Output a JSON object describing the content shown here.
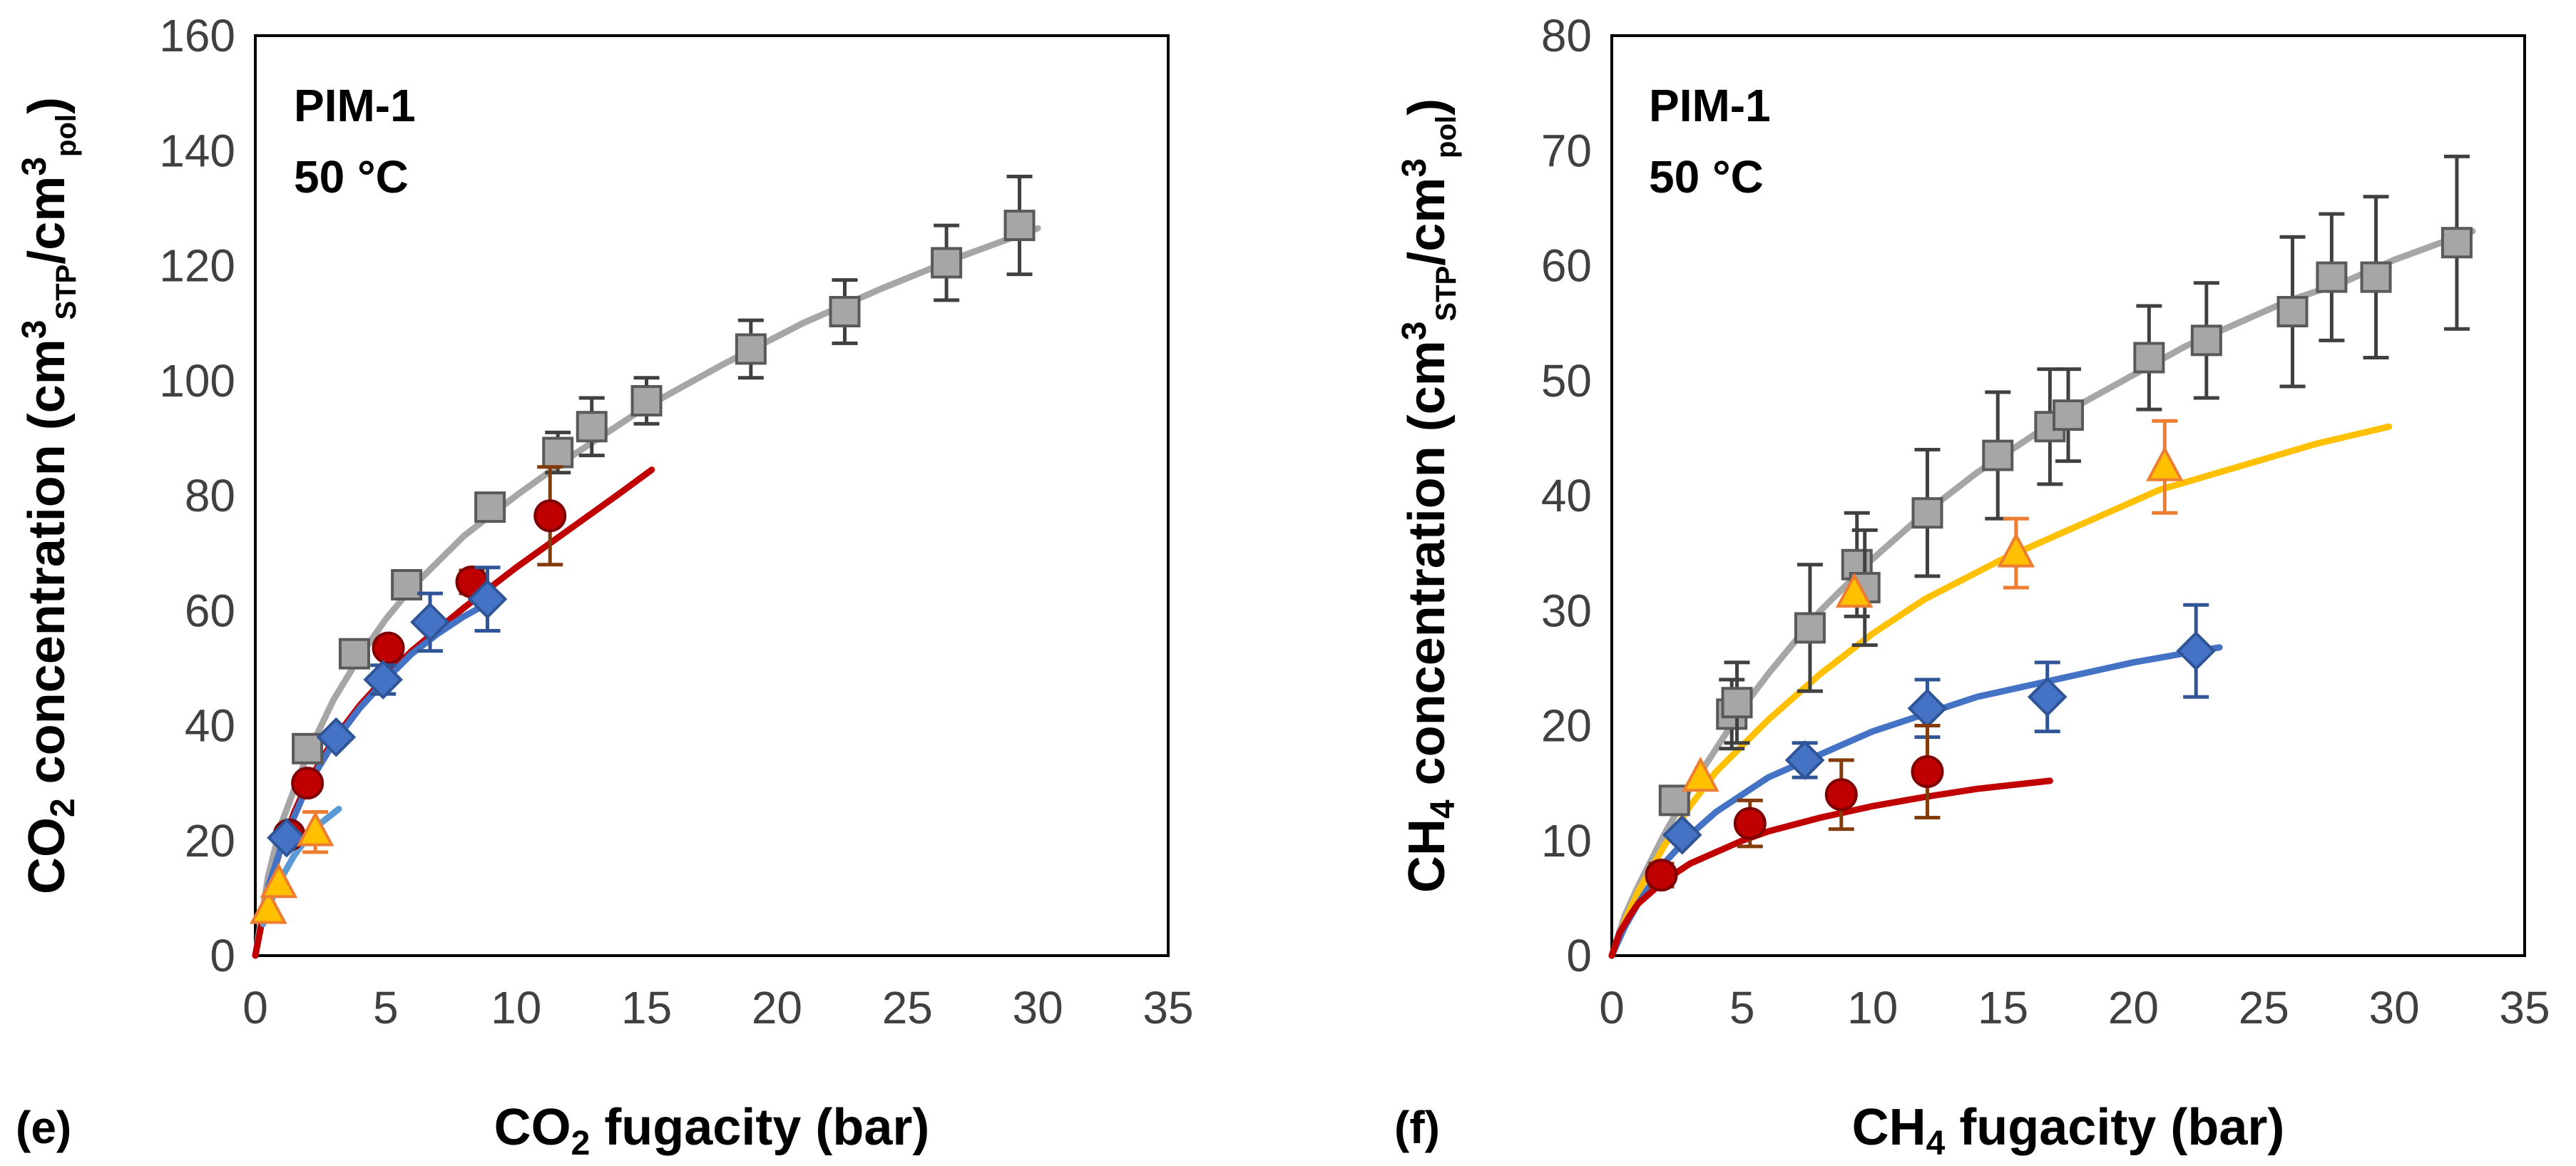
{
  "chart_data": [
    {
      "type": "scatter",
      "panel_label": "(e)",
      "annotation_lines": [
        "PIM-1",
        "50 °C"
      ],
      "xlabel": {
        "pre": "CO",
        "sub": "2",
        "post": " fugacity (bar)"
      },
      "ylabel": {
        "pre": "CO",
        "sub1": "2",
        "mid": " concentration (cm",
        "sup1": "3",
        "sub2": "STP",
        "mid2": "/cm",
        "sup2": "3",
        "sub3": "pol",
        "post": ")"
      },
      "xlim": [
        0,
        35
      ],
      "ylim": [
        0,
        160
      ],
      "xticks": [
        "0",
        "5",
        "10",
        "15",
        "20",
        "25",
        "30",
        "35"
      ],
      "yticks": [
        "0",
        "20",
        "40",
        "60",
        "80",
        "100",
        "120",
        "140",
        "160"
      ],
      "series": [
        {
          "name": "gray squares",
          "marker": "square",
          "color": "#a6a6a6",
          "edge": "#595959",
          "errcolor": "#404040",
          "points": [
            [
              2.0,
              36,
              0
            ],
            [
              3.8,
              52.5,
              0
            ],
            [
              5.8,
              64.5,
              2
            ],
            [
              9.0,
              78,
              2
            ],
            [
              11.6,
              87.5,
              3.5
            ],
            [
              12.9,
              92,
              5
            ],
            [
              15.0,
              96.5,
              4
            ],
            [
              19.0,
              105.5,
              5
            ],
            [
              22.6,
              112,
              5.5
            ],
            [
              26.5,
              120.5,
              6.5
            ],
            [
              29.3,
              127,
              8.5
            ]
          ],
          "fit": [
            [
              0,
              0
            ],
            [
              0.5,
              14
            ],
            [
              1,
              23
            ],
            [
              2,
              35
            ],
            [
              3,
              44.5
            ],
            [
              4,
              52
            ],
            [
              5,
              58.5
            ],
            [
              6,
              64
            ],
            [
              8,
              73
            ],
            [
              10,
              80
            ],
            [
              12,
              86.5
            ],
            [
              15,
              95.5
            ],
            [
              18,
              103
            ],
            [
              21,
              110
            ],
            [
              24,
              116
            ],
            [
              27,
              121.5
            ],
            [
              30,
              126.5
            ]
          ],
          "fitcolor": "#a6a6a6"
        },
        {
          "name": "red circles",
          "marker": "circle",
          "color": "#c00000",
          "edge": "#7f0000",
          "errcolor": "#843c0c",
          "points": [
            [
              1.3,
              21,
              0
            ],
            [
              2.0,
              30,
              0
            ],
            [
              5.1,
              53.5,
              1.5
            ],
            [
              8.3,
              65,
              2
            ],
            [
              11.3,
              76.5,
              8.5
            ]
          ],
          "fit": [
            [
              0,
              0
            ],
            [
              0.3,
              7
            ],
            [
              0.6,
              13
            ],
            [
              1,
              19
            ],
            [
              1.5,
              25
            ],
            [
              2,
              30
            ],
            [
              3,
              37.5
            ],
            [
              4,
              43.5
            ],
            [
              5,
              48.5
            ],
            [
              6,
              53
            ],
            [
              8,
              60.5
            ],
            [
              10,
              67.5
            ],
            [
              12,
              74
            ],
            [
              14,
              80.5
            ],
            [
              15.2,
              84.5
            ]
          ],
          "fitcolor": "#c00000"
        },
        {
          "name": "blue diamonds",
          "marker": "diamond",
          "color": "#4472c4",
          "edge": "#2f5597",
          "errcolor": "#2f5597",
          "points": [
            [
              1.2,
              20.5,
              0
            ],
            [
              3.1,
              38,
              0
            ],
            [
              4.9,
              48,
              2.5
            ],
            [
              6.7,
              58,
              5
            ],
            [
              8.9,
              62,
              5.5
            ]
          ],
          "fit": [
            [
              0.5,
              12
            ],
            [
              1,
              19
            ],
            [
              2,
              29.5
            ],
            [
              3,
              37
            ],
            [
              4,
              43
            ],
            [
              5,
              48
            ],
            [
              6,
              52.5
            ],
            [
              7,
              56
            ],
            [
              8,
              59
            ],
            [
              9,
              61.5
            ]
          ],
          "fitcolor": "#4472c4"
        },
        {
          "name": "orange triangles",
          "marker": "triangle",
          "color": "#ffc000",
          "edge": "#ed7d31",
          "errcolor": "#ed7d31",
          "points": [
            [
              0.5,
              8,
              0
            ],
            [
              0.9,
              12.5,
              0
            ],
            [
              2.3,
              21.5,
              3.5
            ]
          ],
          "fit": [
            [
              0.3,
              5.5
            ],
            [
              0.6,
              9.5
            ],
            [
              1,
              13.5
            ],
            [
              1.5,
              17.5
            ],
            [
              2,
              20.5
            ],
            [
              2.5,
              23
            ],
            [
              3.2,
              25.5
            ]
          ],
          "fitcolor": "#5b9bd5"
        }
      ]
    },
    {
      "type": "scatter",
      "panel_label": "(f)",
      "annotation_lines": [
        "PIM-1",
        "50 °C"
      ],
      "xlabel": {
        "pre": "CH",
        "sub": "4",
        "post": " fugacity (bar)"
      },
      "ylabel": {
        "pre": "CH",
        "sub1": "4",
        "mid": " concentration (cm",
        "sup1": "3",
        "sub2": "STP",
        "mid2": "/cm",
        "sup2": "3",
        "sub3": "pol",
        "post": ")"
      },
      "xlim": [
        0,
        35
      ],
      "ylim": [
        0,
        80
      ],
      "xticks": [
        "0",
        "5",
        "10",
        "15",
        "20",
        "25",
        "30",
        "35"
      ],
      "yticks": [
        "0",
        "10",
        "20",
        "30",
        "40",
        "50",
        "60",
        "70",
        "80"
      ],
      "series": [
        {
          "name": "gray squares",
          "marker": "square",
          "color": "#a6a6a6",
          "edge": "#595959",
          "errcolor": "#404040",
          "points": [
            [
              2.4,
              13.5,
              0
            ],
            [
              4.6,
              21,
              3
            ],
            [
              4.8,
              22,
              3.5
            ],
            [
              7.6,
              28.5,
              5.5
            ],
            [
              9.4,
              34,
              4.5
            ],
            [
              9.7,
              32,
              5
            ],
            [
              12.1,
              38.5,
              5.5
            ],
            [
              14.8,
              43.5,
              5.5
            ],
            [
              16.8,
              46,
              5
            ],
            [
              17.5,
              47,
              4
            ],
            [
              20.6,
              52,
              4.5
            ],
            [
              22.8,
              53.5,
              5
            ],
            [
              26.1,
              56,
              6.5
            ],
            [
              27.6,
              59,
              5.5
            ],
            [
              29.3,
              59,
              7
            ],
            [
              32.4,
              62,
              7.5
            ]
          ],
          "fit": [
            [
              0,
              0
            ],
            [
              0.5,
              3.5
            ],
            [
              1,
              6
            ],
            [
              2,
              10.5
            ],
            [
              3,
              14.5
            ],
            [
              4,
              18
            ],
            [
              5,
              21.5
            ],
            [
              6,
              24.5
            ],
            [
              8,
              30
            ],
            [
              10,
              34.5
            ],
            [
              12,
              38.5
            ],
            [
              14,
              42
            ],
            [
              16,
              45
            ],
            [
              18,
              48
            ],
            [
              20,
              50.5
            ],
            [
              22,
              53
            ],
            [
              24,
              55
            ],
            [
              26,
              57
            ],
            [
              28,
              58.5
            ],
            [
              30,
              60.5
            ],
            [
              33,
              63
            ]
          ],
          "fitcolor": "#a6a6a6"
        },
        {
          "name": "orange triangles",
          "marker": "triangle",
          "color": "#ffc000",
          "edge": "#ed7d31",
          "errcolor": "#ed7d31",
          "points": [
            [
              3.4,
              15.5,
              0
            ],
            [
              9.3,
              31.5,
              0
            ],
            [
              15.5,
              35,
              3
            ],
            [
              21.2,
              42.5,
              4
            ]
          ],
          "fit": [
            [
              0,
              0
            ],
            [
              0.5,
              3
            ],
            [
              1,
              5.5
            ],
            [
              2,
              9.5
            ],
            [
              3,
              13
            ],
            [
              4,
              16
            ],
            [
              6,
              20.5
            ],
            [
              8,
              24.5
            ],
            [
              10,
              28
            ],
            [
              12,
              31
            ],
            [
              15,
              34.5
            ],
            [
              18,
              37.5
            ],
            [
              21,
              40.5
            ],
            [
              24,
              42.5
            ],
            [
              27,
              44.5
            ],
            [
              29.8,
              46
            ]
          ],
          "fitcolor": "#ffc000"
        },
        {
          "name": "blue diamonds",
          "marker": "diamond",
          "color": "#4472c4",
          "edge": "#2f5597",
          "errcolor": "#2f5597",
          "points": [
            [
              2.7,
              10.5,
              0
            ],
            [
              7.4,
              17,
              1.5
            ],
            [
              12.1,
              21.5,
              2.5
            ],
            [
              16.7,
              22.5,
              3
            ],
            [
              22.4,
              26.5,
              4
            ]
          ],
          "fit": [
            [
              0,
              0
            ],
            [
              0.5,
              2.5
            ],
            [
              1,
              4.5
            ],
            [
              2,
              8
            ],
            [
              3,
              10.5
            ],
            [
              4,
              12.5
            ],
            [
              5,
              14
            ],
            [
              6,
              15.5
            ],
            [
              8,
              17.5
            ],
            [
              10,
              19.5
            ],
            [
              12,
              21
            ],
            [
              14,
              22.5
            ],
            [
              16,
              23.5
            ],
            [
              18,
              24.5
            ],
            [
              20,
              25.5
            ],
            [
              22,
              26.3
            ],
            [
              23.3,
              26.8
            ]
          ],
          "fitcolor": "#4472c4"
        },
        {
          "name": "red circles",
          "marker": "circle",
          "color": "#c00000",
          "edge": "#7f0000",
          "errcolor": "#843c0c",
          "points": [
            [
              1.9,
              7,
              1
            ],
            [
              5.3,
              11.5,
              2
            ],
            [
              8.8,
              14,
              3
            ],
            [
              12.1,
              16,
              4
            ]
          ],
          "fit": [
            [
              0,
              0
            ],
            [
              0.3,
              2
            ],
            [
              0.7,
              3.5
            ],
            [
              1,
              4.5
            ],
            [
              1.5,
              5.5
            ],
            [
              2,
              6.5
            ],
            [
              3,
              8
            ],
            [
              4,
              9
            ],
            [
              5,
              10
            ],
            [
              6,
              10.8
            ],
            [
              8,
              12
            ],
            [
              10,
              13
            ],
            [
              12,
              13.8
            ],
            [
              14,
              14.5
            ],
            [
              16.8,
              15.2
            ]
          ],
          "fitcolor": "#c00000"
        }
      ]
    }
  ]
}
